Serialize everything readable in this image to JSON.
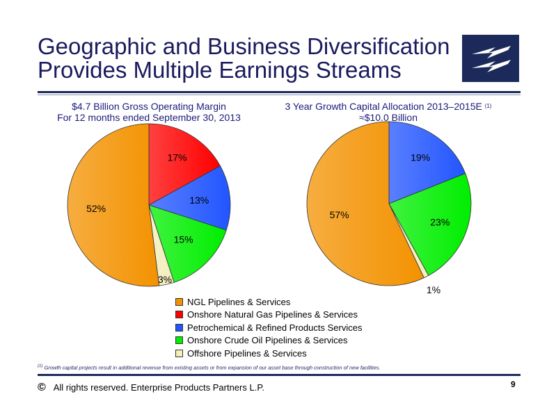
{
  "slide": {
    "title_line1": "Geographic and Business Diversification",
    "title_line2": "Provides Multiple Earnings Streams",
    "footnote_mark": "(1)",
    "footnote": "Growth capital projects result in additional revenue from existing assets or from expansion of our asset base through construction of new facilities.",
    "copyright_symbol": "©",
    "footer": "All rights reserved. Enterprise Products Partners L.P.",
    "page_number": "9"
  },
  "legend": [
    {
      "label": "NGL Pipelines & Services",
      "color": "#f39200"
    },
    {
      "label": "Onshore Natural Gas Pipelines & Services",
      "color": "#ff0000"
    },
    {
      "label": "Petrochemical & Refined Products Services",
      "color": "#2255ff"
    },
    {
      "label": "Onshore Crude Oil Pipelines & Services",
      "color": "#00ee00"
    },
    {
      "label": "Offshore Pipelines & Services",
      "color": "#f3eebb"
    }
  ],
  "chart_data": [
    {
      "type": "pie",
      "title_line1": "$4.7 Billion Gross Operating Margin",
      "title_line2": "For 12 months ended September 30, 2013",
      "slices": [
        {
          "category": "Onshore Natural Gas Pipelines & Services",
          "value": 17,
          "label": "17%"
        },
        {
          "category": "Petrochemical & Refined Products Services",
          "value": 13,
          "label": "13%"
        },
        {
          "category": "Onshore Crude Oil Pipelines & Services",
          "value": 15,
          "label": "15%"
        },
        {
          "category": "Offshore Pipelines & Services",
          "value": 3,
          "label": "3%"
        },
        {
          "category": "NGL Pipelines & Services",
          "value": 52,
          "label": "52%"
        }
      ]
    },
    {
      "type": "pie",
      "title_line1": "3 Year Growth Capital Allocation 2013–2015E",
      "title_sup": "(1)",
      "title_line2": "≈$10.0 Billion",
      "slices": [
        {
          "category": "Petrochemical & Refined Products Services",
          "value": 19,
          "label": "19%"
        },
        {
          "category": "Onshore Crude Oil Pipelines & Services",
          "value": 23,
          "label": "23%"
        },
        {
          "category": "Offshore Pipelines & Services",
          "value": 1,
          "label": "1%"
        },
        {
          "category": "NGL Pipelines & Services",
          "value": 57,
          "label": "57%"
        }
      ]
    }
  ]
}
